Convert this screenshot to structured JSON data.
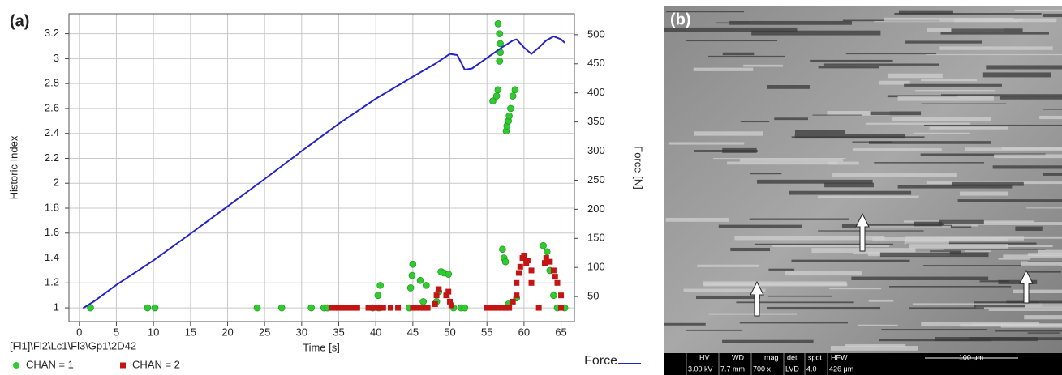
{
  "chart_data": {
    "type": "scatter",
    "panel_label": "(a)",
    "x_label": "Time [s]",
    "y_label": "Historic Index",
    "y2_label": "Force [N]",
    "source_path": "[Fl1]\\Fl2\\Lc1\\Fl3\\Gp1\\2D42",
    "xlim": [
      -1.4,
      66.8
    ],
    "xticks": [
      0,
      5,
      10,
      15,
      20,
      25,
      30,
      35,
      40,
      45,
      50,
      55,
      60,
      65
    ],
    "ylim": [
      0.89,
      3.36
    ],
    "yticks": [
      1,
      1.2,
      1.4,
      1.6,
      1.8,
      2,
      2.2,
      2.4,
      2.6,
      2.8,
      3,
      3.2
    ],
    "y2lim": [
      7,
      536
    ],
    "y2ticks": [
      50,
      100,
      150,
      200,
      250,
      300,
      350,
      400,
      450,
      500
    ],
    "grid": true,
    "series": [
      {
        "name": "CHAN = 1",
        "color": "#2ecc2e",
        "marker": "circle",
        "x": [
          1.5,
          9.2,
          10.2,
          24,
          27.3,
          31.3,
          33,
          33.5,
          39.6,
          40.4,
          40.3,
          40.6,
          44.5,
          44.7,
          44.9,
          45,
          46,
          46.4,
          46.8,
          48.2,
          48.5,
          48.8,
          49.2,
          49.8,
          50.5,
          51.5,
          52,
          55.8,
          56.3,
          56.5,
          56.5,
          56.7,
          56.8,
          56.8,
          56.7,
          57.1,
          57.3,
          57.5,
          57.6,
          57.7,
          57.9,
          58,
          58.2,
          58.5,
          58.8,
          57.9,
          59,
          62.6,
          63.1,
          63.5,
          64,
          64.5,
          65.5
        ],
        "values": [
          1,
          1,
          1,
          1,
          1,
          1,
          1,
          1,
          1,
          1,
          1.1,
          1.18,
          1,
          1.16,
          1.26,
          1.35,
          1.22,
          1.05,
          1.18,
          1.05,
          1.13,
          1.29,
          1.28,
          1.27,
          1,
          1,
          1,
          2.66,
          2.7,
          2.75,
          3.28,
          3.2,
          3.12,
          3.05,
          2.98,
          1.47,
          1.4,
          1.37,
          2.42,
          2.46,
          2.5,
          2.54,
          2.6,
          2.7,
          2.75,
          1.03,
          1.08,
          1.5,
          1.45,
          1.3,
          1.1,
          1,
          1
        ]
      },
      {
        "name": "CHAN = 2",
        "color": "#c41414",
        "marker": "square",
        "x": [
          34,
          34.5,
          35,
          35.5,
          36,
          36.5,
          37,
          37.5,
          39,
          39.5,
          40,
          40.5,
          41,
          42,
          43,
          45,
          45.5,
          46,
          46.5,
          47,
          48,
          48.2,
          48.5,
          49.5,
          49.8,
          50,
          50.2,
          55,
          55.5,
          56,
          56.5,
          57,
          57.5,
          58,
          58.5,
          59,
          59,
          59.3,
          59.5,
          59.8,
          60,
          60.3,
          60.5,
          61,
          61,
          62,
          62.8,
          63,
          63.5,
          64,
          64.2,
          64.5,
          65,
          65
        ],
        "values": [
          1,
          1,
          1,
          1,
          1,
          1,
          1,
          1,
          1,
          1,
          1,
          1,
          1,
          1,
          1,
          1,
          1,
          1,
          1,
          1,
          1.03,
          1.1,
          1.15,
          1.1,
          1.13,
          1.05,
          1.02,
          1,
          1,
          1,
          1,
          1,
          1,
          1,
          1.05,
          1.1,
          1.2,
          1.28,
          1.33,
          1.4,
          1.42,
          1.36,
          1.38,
          1.2,
          1.3,
          1,
          1.36,
          1.4,
          1.37,
          1.3,
          1.25,
          1.2,
          1.1,
          1.0
        ]
      },
      {
        "name": "Force",
        "color": "#2323c8",
        "marker": "line",
        "axis": "y2",
        "x": [
          0.5,
          2,
          5,
          10,
          15,
          20,
          25,
          30,
          35,
          40,
          45,
          48,
          50,
          51,
          52,
          53,
          55,
          57,
          58.5,
          59,
          60,
          61,
          62,
          63,
          64,
          65,
          65.5
        ],
        "values": [
          30,
          42,
          70,
          112,
          158,
          205,
          252,
          300,
          347,
          390,
          428,
          450,
          467,
          465,
          440,
          442,
          460,
          478,
          490,
          492,
          478,
          467,
          478,
          490,
          497,
          492,
          486
        ]
      }
    ]
  },
  "sem_panel": {
    "label": "(b)",
    "info_bar": {
      "headers": [
        "HV",
        "WD",
        "mag",
        "det",
        "spot",
        "HFW"
      ],
      "values": [
        "3.00 kV",
        "7.7 mm",
        "700 x",
        "LVD",
        "4.0",
        "426 μm"
      ]
    },
    "scale_bar": "100 μm"
  }
}
